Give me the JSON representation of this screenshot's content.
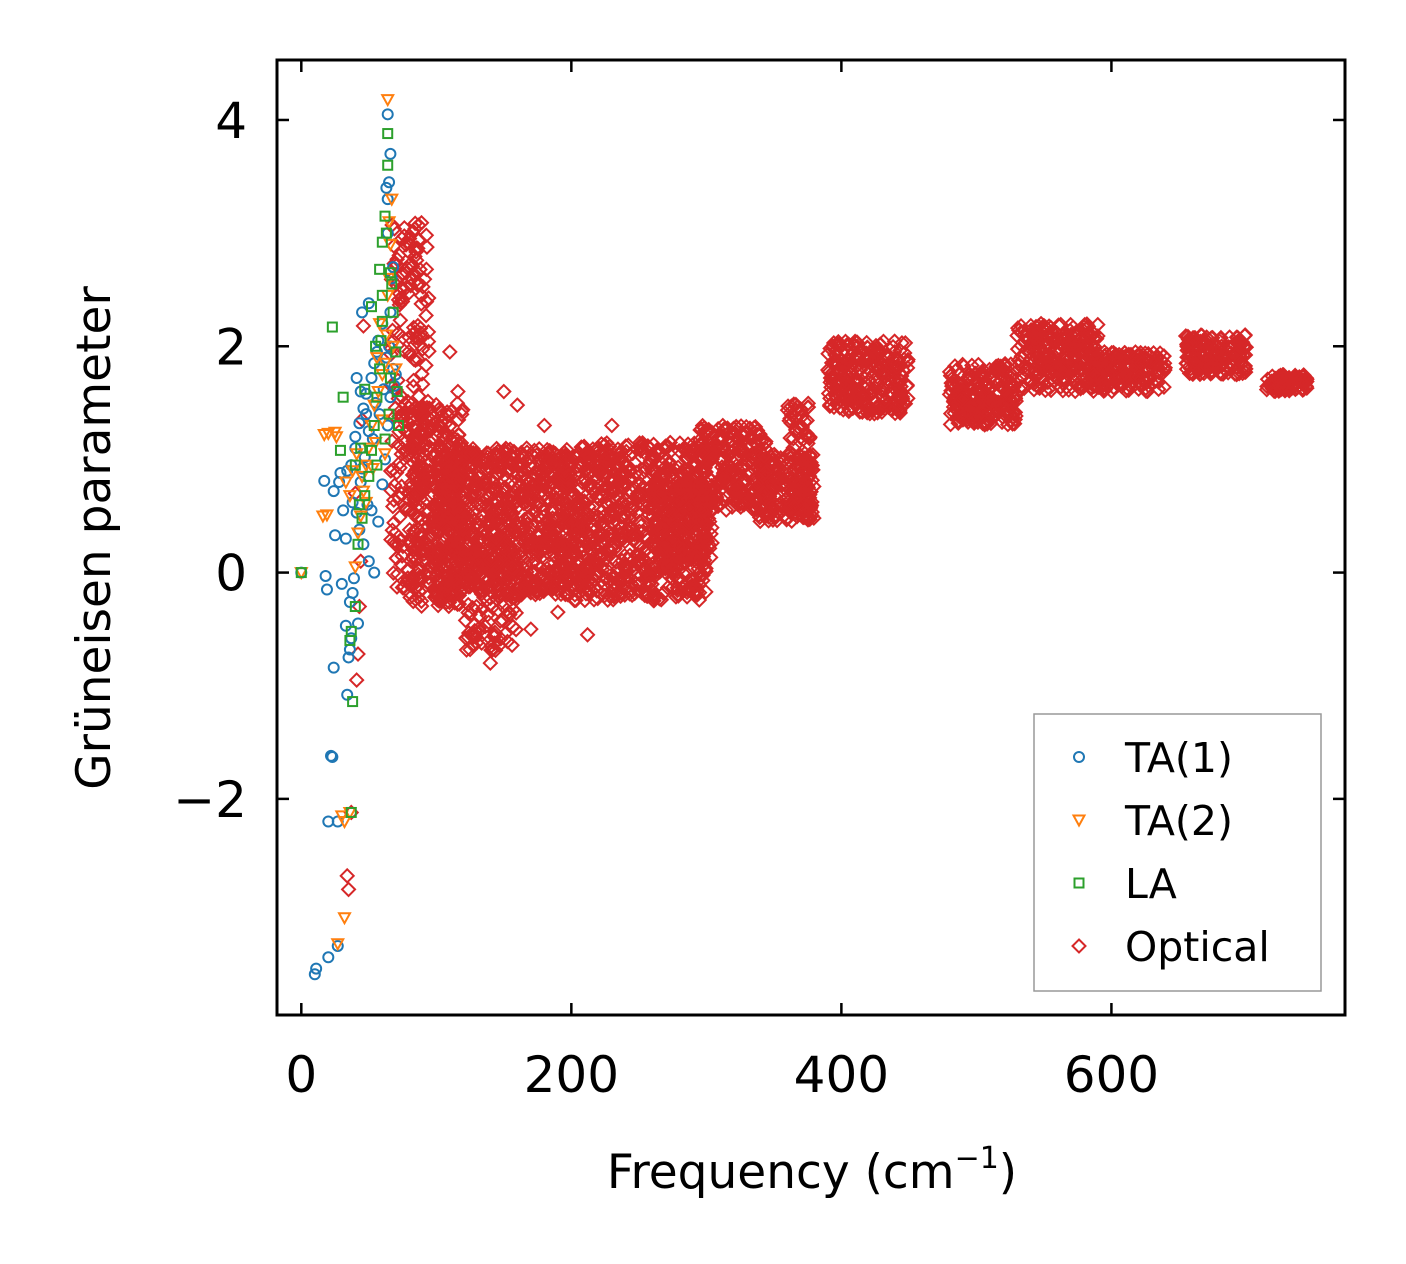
{
  "chart_data": {
    "type": "scatter",
    "title": "",
    "xlabel": "Frequency (cm",
    "xlabel_superscript": "−1",
    "xlabel_suffix": ")",
    "ylabel": "Grüneisen parameter",
    "xlim": [
      -18,
      773
    ],
    "ylim": [
      -3.91,
      4.53
    ],
    "x_ticks": [
      0,
      200,
      400,
      600
    ],
    "x_tick_labels": [
      "0",
      "200",
      "400",
      "600"
    ],
    "y_ticks": [
      -2,
      0,
      2,
      4
    ],
    "y_tick_labels": [
      "−2",
      "0",
      "2",
      "4"
    ],
    "grid": false,
    "legend_position": "lower-right",
    "series": [
      {
        "name": "TA(1)",
        "marker": "circle",
        "color": "#1f77b4",
        "points": [
          [
            0,
            0
          ],
          [
            10,
            -3.55
          ],
          [
            11,
            -3.5
          ],
          [
            20,
            -3.4
          ],
          [
            27,
            -3.3
          ],
          [
            20,
            -2.2
          ],
          [
            27,
            -2.2
          ],
          [
            22,
            -1.62
          ],
          [
            23,
            -1.63
          ],
          [
            24,
            -0.84
          ],
          [
            34,
            -1.08
          ],
          [
            35,
            -0.75
          ],
          [
            33,
            -0.47
          ],
          [
            42,
            -0.45
          ],
          [
            18,
            -0.03
          ],
          [
            19,
            -0.15
          ],
          [
            30,
            -0.1
          ],
          [
            38,
            -0.18
          ],
          [
            36,
            -0.26
          ],
          [
            37,
            -0.58
          ],
          [
            36,
            -0.68
          ],
          [
            25,
            0.33
          ],
          [
            24,
            0.72
          ],
          [
            28,
            0.8
          ],
          [
            17,
            0.81
          ],
          [
            29,
            0.88
          ],
          [
            34,
            0.9
          ],
          [
            37,
            0.95
          ],
          [
            40,
            1.1
          ],
          [
            40,
            1.2
          ],
          [
            43,
            1.32
          ],
          [
            46,
            1.45
          ],
          [
            48,
            1.58
          ],
          [
            52,
            1.72
          ],
          [
            54,
            1.85
          ],
          [
            56,
            1.95
          ],
          [
            57,
            2.05
          ],
          [
            60,
            2.2
          ],
          [
            45,
            2.3
          ],
          [
            50,
            2.38
          ],
          [
            41,
            1.72
          ],
          [
            44,
            1.6
          ],
          [
            48,
            1.4
          ],
          [
            38,
            0.62
          ],
          [
            41,
            0.53
          ],
          [
            43,
            0.38
          ],
          [
            46,
            0.25
          ],
          [
            50,
            0.1
          ],
          [
            54,
            0.0
          ],
          [
            57,
            0.45
          ],
          [
            60,
            0.78
          ],
          [
            62,
            1.0
          ],
          [
            64,
            1.3
          ],
          [
            66,
            1.55
          ],
          [
            68,
            1.8
          ],
          [
            65,
            2.0
          ],
          [
            66,
            2.3
          ],
          [
            67,
            2.6
          ],
          [
            64,
            3.0
          ],
          [
            64,
            3.3
          ],
          [
            63,
            3.4
          ],
          [
            65,
            3.45
          ],
          [
            66,
            3.7
          ],
          [
            64,
            4.05
          ],
          [
            69,
            1.65
          ],
          [
            70,
            1.75
          ],
          [
            68,
            2.7
          ],
          [
            52,
            0.55
          ],
          [
            49,
            0.6
          ],
          [
            44,
            0.8
          ],
          [
            47,
            1.02
          ],
          [
            53,
            1.18
          ],
          [
            58,
            1.4
          ],
          [
            61,
            1.62
          ],
          [
            63,
            1.9
          ],
          [
            39,
            -0.05
          ],
          [
            33,
            0.3
          ],
          [
            31,
            0.55
          ],
          [
            45,
            0.92
          ],
          [
            50,
            1.25
          ],
          [
            55,
            1.5
          ]
        ]
      },
      {
        "name": "TA(2)",
        "marker": "triangle-down",
        "color": "#ff7f0e",
        "points": [
          [
            0,
            0
          ],
          [
            32,
            -3.05
          ],
          [
            27,
            -3.28
          ],
          [
            30,
            -2.15
          ],
          [
            32,
            -2.2
          ],
          [
            36,
            -2.12
          ],
          [
            16,
            0.5
          ],
          [
            19,
            0.51
          ],
          [
            17,
            1.22
          ],
          [
            20,
            1.23
          ],
          [
            25,
            1.24
          ],
          [
            26,
            1.2
          ],
          [
            33,
            0.8
          ],
          [
            36,
            0.68
          ],
          [
            40,
            0.05
          ],
          [
            42,
            0.35
          ],
          [
            44,
            0.5
          ],
          [
            46,
            0.72
          ],
          [
            48,
            0.95
          ],
          [
            50,
            1.1
          ],
          [
            52,
            1.3
          ],
          [
            54,
            1.48
          ],
          [
            57,
            1.6
          ],
          [
            60,
            1.75
          ],
          [
            62,
            1.85
          ],
          [
            63,
            2.1
          ],
          [
            64,
            2.45
          ],
          [
            65,
            2.6
          ],
          [
            66,
            2.9
          ],
          [
            65,
            3.1
          ],
          [
            67,
            3.3
          ],
          [
            64,
            4.18
          ],
          [
            58,
            2.2
          ],
          [
            56,
            1.9
          ],
          [
            60,
            1.35
          ],
          [
            62,
            1.05
          ],
          [
            48,
            0.62
          ],
          [
            45,
            0.85
          ],
          [
            53,
            0.92
          ],
          [
            55,
            1.15
          ],
          [
            68,
            2.0
          ],
          [
            70,
            1.8
          ],
          [
            38,
            0.9
          ],
          [
            41,
            1.05
          ]
        ]
      },
      {
        "name": "LA",
        "marker": "square",
        "color": "#2ca02c",
        "points": [
          [
            0,
            0
          ],
          [
            23,
            2.17
          ],
          [
            31,
            1.55
          ],
          [
            29,
            1.08
          ],
          [
            36,
            -0.6
          ],
          [
            37,
            -0.52
          ],
          [
            38,
            -1.14
          ],
          [
            37,
            -2.12
          ],
          [
            40,
            -0.3
          ],
          [
            42,
            0.25
          ],
          [
            45,
            0.48
          ],
          [
            47,
            0.68
          ],
          [
            50,
            0.85
          ],
          [
            52,
            1.08
          ],
          [
            54,
            1.3
          ],
          [
            56,
            1.55
          ],
          [
            58,
            1.8
          ],
          [
            59,
            2.05
          ],
          [
            60,
            2.22
          ],
          [
            60,
            2.45
          ],
          [
            58,
            2.68
          ],
          [
            60,
            2.92
          ],
          [
            63,
            3.0
          ],
          [
            62,
            3.15
          ],
          [
            64,
            3.6
          ],
          [
            64,
            3.88
          ],
          [
            66,
            2.65
          ],
          [
            67,
            2.55
          ],
          [
            68,
            2.3
          ],
          [
            70,
            1.95
          ],
          [
            71,
            1.6
          ],
          [
            72,
            1.3
          ],
          [
            66,
            1.72
          ],
          [
            65,
            1.4
          ],
          [
            62,
            1.18
          ],
          [
            56,
            0.95
          ],
          [
            44,
            1.1
          ],
          [
            47,
            1.62
          ],
          [
            52,
            2.35
          ],
          [
            55,
            2.0
          ],
          [
            40,
            0.95
          ],
          [
            43,
            0.6
          ]
        ]
      },
      {
        "name": "Optical",
        "marker": "diamond",
        "color": "#d62728",
        "points": [
          [
            34,
            -2.68
          ],
          [
            35,
            -2.8
          ],
          [
            37,
            -2.12
          ],
          [
            41,
            -0.95
          ],
          [
            42,
            -0.72
          ],
          [
            43,
            -0.3
          ],
          [
            44,
            0.1
          ],
          [
            46,
            2.18
          ],
          [
            45,
            1.35
          ],
          [
            40,
            0.7
          ],
          [
            90,
            1.2
          ],
          [
            95,
            0.9
          ],
          [
            100,
            -0.2
          ],
          [
            110,
            1.95
          ],
          [
            116,
            1.6
          ],
          [
            120,
            -0.15
          ],
          [
            125,
            -0.68
          ],
          [
            130,
            -0.62
          ],
          [
            140,
            -0.8
          ],
          [
            143,
            -0.55
          ],
          [
            150,
            1.6
          ],
          [
            160,
            1.48
          ],
          [
            170,
            -0.5
          ],
          [
            180,
            1.3
          ],
          [
            190,
            -0.35
          ],
          [
            212,
            -0.55
          ],
          [
            230,
            1.3
          ],
          [
            245,
            -0.2
          ],
          [
            490,
            1.35
          ]
        ],
        "clusters": [
          {
            "x": [
              66,
              95
            ],
            "y": [
              -0.15,
              3.1
            ],
            "n": 240
          },
          {
            "x": [
              80,
              120
            ],
            "y": [
              -0.3,
              1.5
            ],
            "n": 300
          },
          {
            "x": [
              100,
              200
            ],
            "y": [
              -0.2,
              1.1
            ],
            "n": 900
          },
          {
            "x": [
              120,
              160
            ],
            "y": [
              -0.7,
              0.3
            ],
            "n": 120
          },
          {
            "x": [
              200,
              300
            ],
            "y": [
              -0.25,
              1.15
            ],
            "n": 800
          },
          {
            "x": [
              260,
              305
            ],
            "y": [
              0.05,
              0.8
            ],
            "n": 200
          },
          {
            "x": [
              295,
              345
            ],
            "y": [
              0.55,
              1.3
            ],
            "n": 260
          },
          {
            "x": [
              335,
              380
            ],
            "y": [
              0.45,
              1.05
            ],
            "n": 200
          },
          {
            "x": [
              360,
              378
            ],
            "y": [
              0.55,
              1.5
            ],
            "n": 80
          },
          {
            "x": [
              390,
              450
            ],
            "y": [
              1.4,
              2.05
            ],
            "n": 280
          },
          {
            "x": [
              480,
              530
            ],
            "y": [
              1.3,
              1.85
            ],
            "n": 240
          },
          {
            "x": [
              530,
              590
            ],
            "y": [
              1.6,
              2.2
            ],
            "n": 280
          },
          {
            "x": [
              585,
              640
            ],
            "y": [
              1.6,
              1.95
            ],
            "n": 200
          },
          {
            "x": [
              655,
              700
            ],
            "y": [
              1.75,
              2.1
            ],
            "n": 160
          },
          {
            "x": [
              715,
              745
            ],
            "y": [
              1.6,
              1.75
            ],
            "n": 90
          }
        ]
      }
    ]
  }
}
